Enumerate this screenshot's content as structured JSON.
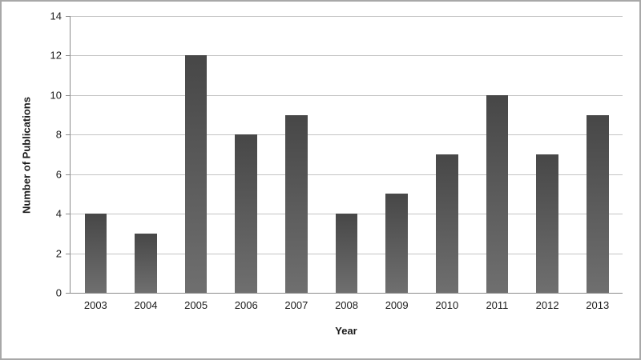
{
  "chart_data": {
    "type": "bar",
    "title": "",
    "xlabel": "Year",
    "ylabel": "Number of Publications",
    "categories": [
      "2003",
      "2004",
      "2005",
      "2006",
      "2007",
      "2008",
      "2009",
      "2010",
      "2011",
      "2012",
      "2013"
    ],
    "values": [
      4,
      3,
      12,
      8,
      9,
      4,
      5,
      7,
      10,
      7,
      9
    ],
    "ylim": [
      0,
      14
    ],
    "ytick_step": 2,
    "yticks": [
      0,
      2,
      4,
      6,
      8,
      10,
      12,
      14
    ],
    "grid": "horizontal",
    "legend": "none",
    "bar_color_top": "#474747",
    "bar_color_bottom": "#6f6f6f",
    "gridline_color": "#c3c3c3",
    "axis_color": "#8c8c8c"
  }
}
